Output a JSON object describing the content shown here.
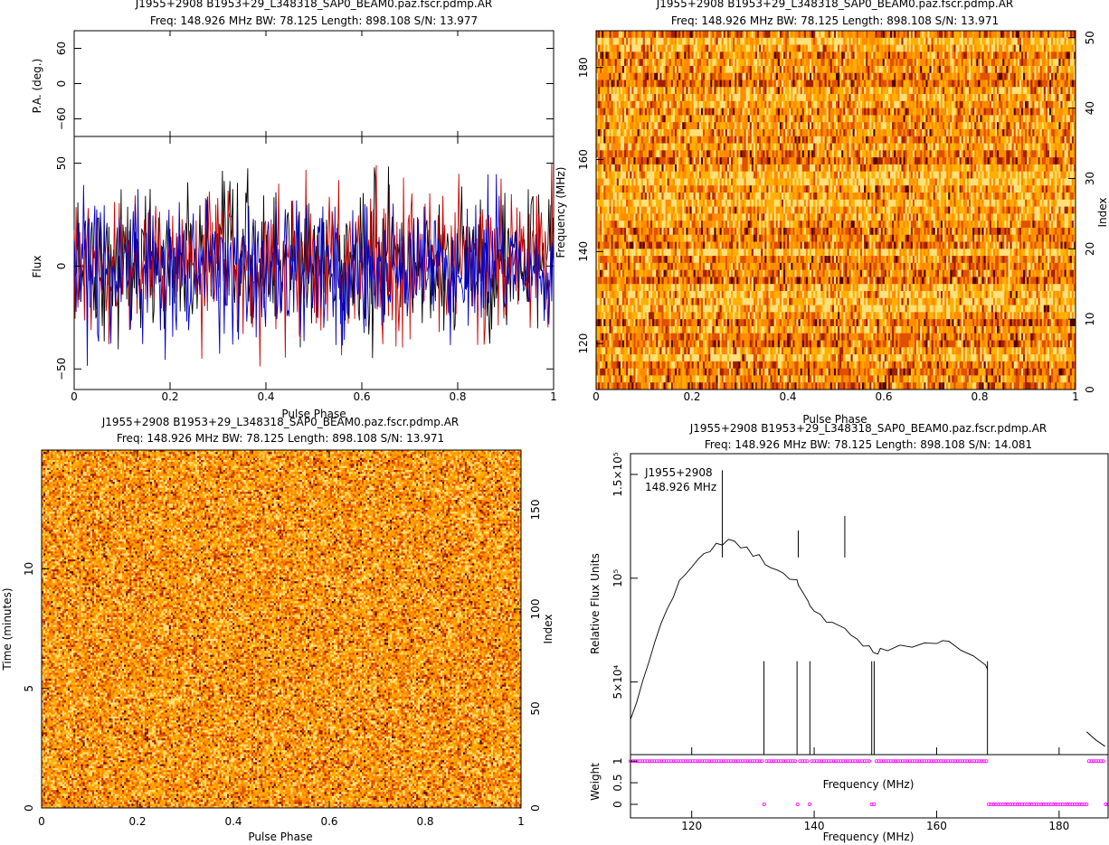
{
  "chart_data": [
    {
      "id": "profile",
      "type": "line",
      "title": "J1955+2908  B1953+29_L348318_SAP0_BEAM0.paz.fscr.pdmp.AR",
      "subtitle": "Freq: 148.926 MHz BW: 78.125 Length: 898.108 S/N: 13.977",
      "pa_ylabel": "P.A. (deg.)",
      "pa_yticks": [
        "60",
        "0",
        "−60"
      ],
      "pa_ylim": [
        -90,
        90
      ],
      "xlabel": "Pulse Phase",
      "ylabel": "Flux",
      "xlim": [
        0,
        1
      ],
      "ylim": [
        -60,
        63
      ],
      "xticks": [
        "0",
        "0.2",
        "0.4",
        "0.6",
        "0.8",
        "1"
      ],
      "yticks": [
        "50",
        "0",
        "−50"
      ],
      "series_colors": [
        "#000000",
        "#cc0000",
        "#0000cc"
      ],
      "noise_sigma": 17
    },
    {
      "id": "freq-phase",
      "type": "heatmap",
      "title": "J1955+2908  B1953+29_L348318_SAP0_BEAM0.paz.fscr.pdmp.AR",
      "subtitle": "Freq: 148.926 MHz BW: 78.125 Length: 898.108 S/N: 13.971",
      "xlabel": "Pulse Phase",
      "ylabel": "Frequency (MHz)",
      "y2label": "Index",
      "xlim": [
        0,
        1
      ],
      "ylim": [
        110,
        188
      ],
      "y2lim": [
        0,
        51
      ],
      "xticks": [
        "0",
        "0.2",
        "0.4",
        "0.6",
        "0.8",
        "1"
      ],
      "yticks": [
        "120",
        "140",
        "160",
        "180"
      ],
      "y2ticks": [
        "0",
        "10",
        "20",
        "30",
        "40",
        "50"
      ],
      "colormap": [
        "#ffe07a",
        "#ffb000",
        "#ff8c00",
        "#e05000",
        "#a02000",
        "#500000"
      ],
      "rows": 51,
      "cols": 256
    },
    {
      "id": "time-phase",
      "type": "heatmap",
      "title": "J1955+2908  B1953+29_L348318_SAP0_BEAM0.paz.fscr.pdmp.AR",
      "subtitle": "Freq: 148.926 MHz BW: 78.125 Length: 898.108 S/N: 13.971",
      "xlabel": "Pulse Phase",
      "ylabel": "Time (minutes)",
      "y2label": "Index",
      "xlim": [
        0,
        1
      ],
      "ylim": [
        0,
        14.97
      ],
      "y2lim": [
        0,
        180
      ],
      "xticks": [
        "0",
        "0.2",
        "0.4",
        "0.6",
        "0.8",
        "1"
      ],
      "yticks": [
        "0",
        "5",
        "10"
      ],
      "y2ticks": [
        "0",
        "50",
        "100",
        "150"
      ],
      "colormap": [
        "#ffe07a",
        "#ffb000",
        "#ff8c00",
        "#e05000",
        "#a02000",
        "#500000"
      ],
      "rows": 180,
      "cols": 256
    },
    {
      "id": "bandpass",
      "type": "line",
      "title": "J1955+2908  B1953+29_L348318_SAP0_BEAM0.paz.fscr.pdmp.AR",
      "subtitle": "Freq: 148.926 MHz BW: 78.125 Length: 898.108 S/N: 14.081",
      "annotation": [
        "J1955+2908",
        "148.926 MHz"
      ],
      "xlabel": "Frequency (MHz)",
      "ylabel": "Relative Flux Units",
      "xlim": [
        110,
        188
      ],
      "ylim": [
        15000,
        160000
      ],
      "xticks": [
        "120",
        "140",
        "160",
        "180"
      ],
      "ytick_labels": [
        "1.5×10⁵",
        "10⁵",
        "5×10⁴"
      ],
      "ytick_values": [
        150000,
        100000,
        50000
      ],
      "curve_x": [
        110,
        111,
        112,
        113,
        114,
        115,
        116,
        117,
        118,
        119,
        120,
        121,
        122,
        123,
        124,
        125,
        126,
        127,
        128,
        129,
        130,
        131,
        131.8,
        132,
        133,
        134,
        135,
        136,
        137.2,
        137.4,
        138,
        139,
        139.3,
        139.5,
        140,
        141,
        142,
        143,
        144,
        145,
        146,
        147,
        148,
        149,
        149.4,
        149.6,
        150,
        150.4,
        150.8,
        152,
        154,
        156,
        158,
        160,
        161,
        162,
        164,
        166,
        168,
        168.3
      ],
      "curve_y": [
        32000,
        40000,
        50000,
        60000,
        70000,
        78000,
        85000,
        92000,
        98000,
        102000,
        105000,
        108000,
        111000,
        114000,
        116000,
        117000,
        118000,
        117000,
        116000,
        114000,
        112000,
        110000,
        108000,
        108000,
        106000,
        104000,
        102000,
        100000,
        98000,
        96000,
        94000,
        90000,
        88000,
        85000,
        84000,
        82000,
        80000,
        79000,
        77000,
        75000,
        72000,
        70000,
        68000,
        67000,
        66000,
        64000,
        64000,
        64000,
        66000,
        66000,
        67000,
        67000,
        68000,
        69000,
        71000,
        69000,
        66000,
        62000,
        58000,
        56000
      ],
      "spikes": [
        {
          "x": 125,
          "y": 152000
        },
        {
          "x": 137.4,
          "y": 123000
        },
        {
          "x": 145,
          "y": 130000
        }
      ],
      "dropouts": [
        131.8,
        137.2,
        139.3,
        149.4,
        149.8,
        168.3
      ],
      "right_segment_x": [
        184.5,
        186,
        187.5
      ],
      "right_segment_y": [
        26000,
        22000,
        19000
      ],
      "weight_ylabel": "Weight",
      "weight_yticks": [
        "0",
        "0.5",
        "1"
      ],
      "weight_xlabel_inner": "Frequency (MHz)",
      "weight_zero_ranges": [
        [
          131.6,
          132
        ],
        [
          137.1,
          137.5
        ],
        [
          139.1,
          139.5
        ],
        [
          149.2,
          150
        ],
        [
          168.3,
          184.5
        ],
        [
          187.3,
          188
        ]
      ],
      "weight_marker_color": "#ff00ff"
    }
  ]
}
